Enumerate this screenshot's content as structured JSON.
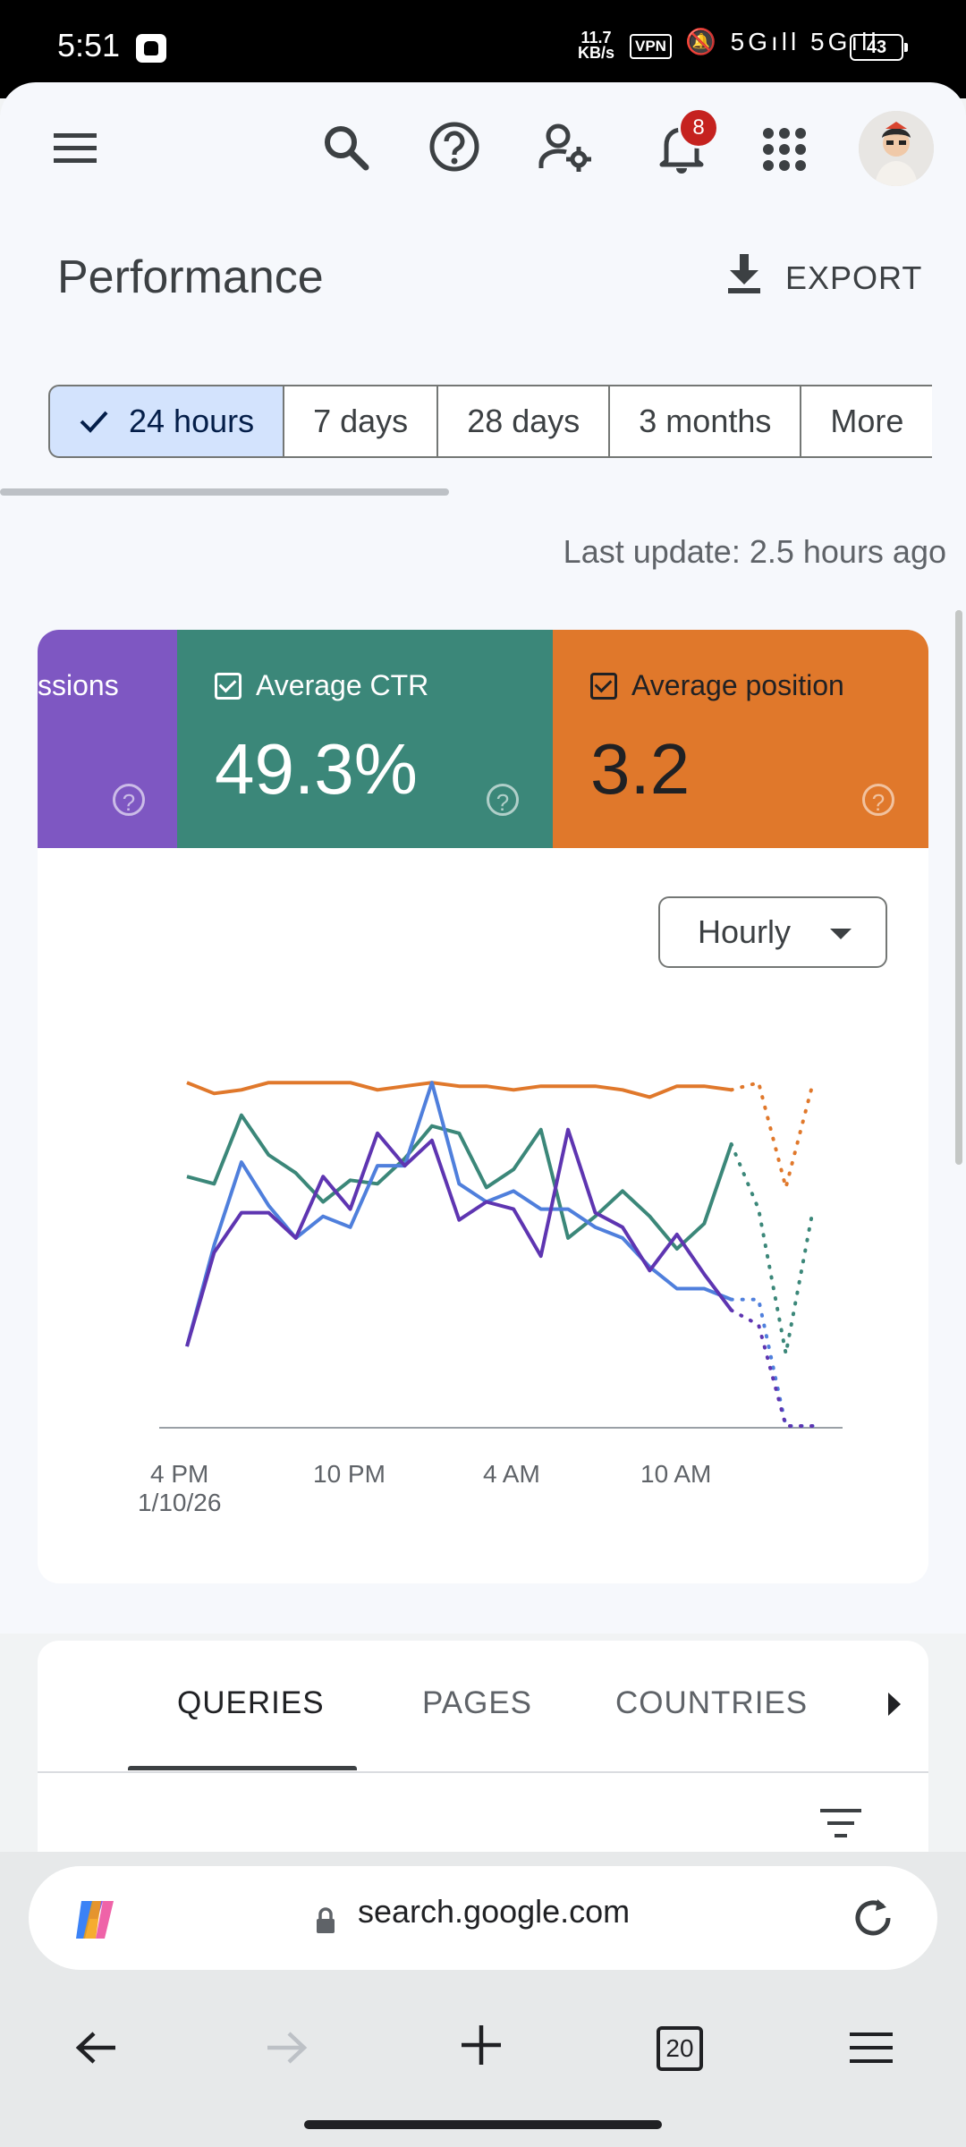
{
  "status_bar": {
    "time": "5:51",
    "net_speed_top": "11.7",
    "net_speed_bottom": "KB/s",
    "vpn": "VPN",
    "signal_icons": "🔕 5Gıll 5Gıll",
    "battery": "43"
  },
  "app_bar": {
    "notification_count": "8"
  },
  "header": {
    "title": "Performance",
    "export_label": "EXPORT"
  },
  "date_range": {
    "chips": [
      "24 hours",
      "7 days",
      "28 days",
      "3 months",
      "More"
    ],
    "selected": "24 hours"
  },
  "last_update": "Last update: 2.5 hours ago",
  "metrics": {
    "impressions_label": "ssions",
    "ctr_label": "Average CTR",
    "ctr_value": "49.3%",
    "position_label": "Average position",
    "position_value": "3.2",
    "colors": {
      "clicks": "#4f7fdc",
      "impressions": "#5e35b1",
      "ctr": "#3b8779",
      "position": "#e0782b"
    }
  },
  "granularity": {
    "selected": "Hourly"
  },
  "chart_data": {
    "type": "line",
    "x_ticks": [
      "4 PM\n1/10/26",
      "10 PM",
      "4 AM",
      "10 AM"
    ],
    "xlabel": "",
    "ylabel": "",
    "grid": false,
    "y_axis_visible": false,
    "series": [
      {
        "key": "position",
        "color": "#e0782b",
        "values": [
          0.95,
          0.92,
          0.93,
          0.95,
          0.95,
          0.95,
          0.95,
          0.93,
          0.94,
          0.95,
          0.94,
          0.94,
          0.93,
          0.94,
          0.94,
          0.94,
          0.93,
          0.91,
          0.94,
          0.94,
          0.93,
          0.95,
          0.66,
          0.95
        ],
        "solid_points": 21
      },
      {
        "key": "ctr",
        "color": "#3b8779",
        "values": [
          0.69,
          0.67,
          0.86,
          0.75,
          0.7,
          0.62,
          0.68,
          0.67,
          0.74,
          0.83,
          0.81,
          0.66,
          0.71,
          0.82,
          0.52,
          0.58,
          0.65,
          0.58,
          0.49,
          0.56,
          0.78,
          0.6,
          0.2,
          0.6
        ],
        "solid_points": 21
      },
      {
        "key": "clicks",
        "color": "#4f7fdc",
        "values": [
          0.22,
          0.5,
          0.73,
          0.61,
          0.52,
          0.58,
          0.55,
          0.72,
          0.72,
          0.95,
          0.67,
          0.62,
          0.65,
          0.6,
          0.6,
          0.55,
          0.52,
          0.44,
          0.38,
          0.38,
          0.35,
          0.35,
          0.0,
          0.0
        ],
        "solid_points": 21
      },
      {
        "key": "impressions",
        "color": "#5e35b1",
        "values": [
          0.22,
          0.48,
          0.59,
          0.59,
          0.52,
          0.69,
          0.6,
          0.81,
          0.72,
          0.79,
          0.57,
          0.62,
          0.6,
          0.47,
          0.82,
          0.59,
          0.55,
          0.43,
          0.53,
          0.42,
          0.32,
          0.28,
          0.0,
          0.0
        ],
        "solid_points": 21
      }
    ]
  },
  "tabs": [
    "QUERIES",
    "PAGES",
    "COUNTRIES"
  ],
  "browser": {
    "url": "search.google.com",
    "tab_count": "20"
  }
}
